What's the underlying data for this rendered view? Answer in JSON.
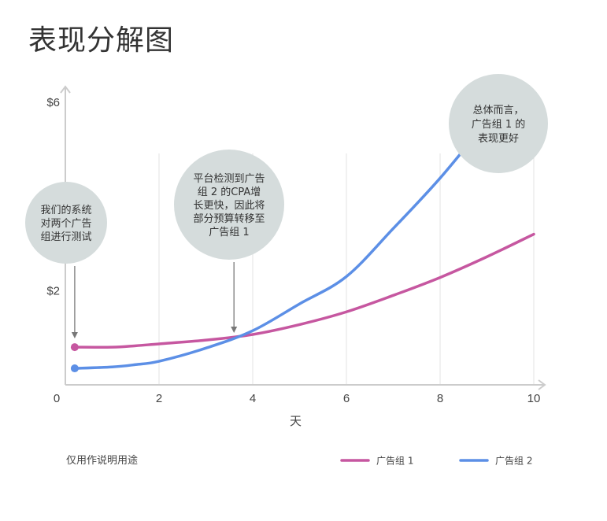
{
  "title": "表现分解图",
  "footnote": "仅用作说明用途",
  "colors": {
    "series1": "#c657a0",
    "series2": "#5c8fe6",
    "bubble": "#d5dcdc",
    "axis": "#cccccc"
  },
  "chart_data": {
    "type": "line",
    "xlabel": "天",
    "ylabel": "",
    "xlim": [
      0,
      10
    ],
    "ylim": [
      0,
      7
    ],
    "x_ticks": [
      "0",
      "2",
      "4",
      "6",
      "8",
      "10"
    ],
    "y_ticks": [
      "$2",
      "$6"
    ],
    "y_tick_values": [
      2,
      6
    ],
    "vertical_gridlines": [
      2,
      4,
      6,
      8,
      10
    ],
    "legend_position": "bottom-right",
    "series": [
      {
        "name": "广告组 1",
        "color": "#c657a0",
        "x": [
          0.2,
          1,
          1.5,
          2,
          3,
          4,
          5,
          6,
          7,
          8,
          9,
          10
        ],
        "y": [
          0.8,
          0.8,
          0.83,
          0.87,
          0.95,
          1.07,
          1.28,
          1.55,
          1.9,
          2.28,
          2.72,
          3.2
        ],
        "start_marker": true
      },
      {
        "name": "广告组 2",
        "color": "#5c8fe6",
        "x": [
          0.2,
          1,
          1.5,
          2,
          3,
          4,
          5,
          6,
          7,
          8,
          9,
          9.4
        ],
        "y": [
          0.35,
          0.38,
          0.43,
          0.5,
          0.78,
          1.15,
          1.72,
          2.3,
          3.32,
          4.39,
          5.6,
          6.1
        ],
        "start_marker": true
      }
    ],
    "annotations": [
      {
        "id": "a1",
        "lines": [
          "我们的系统",
          "对两个广告",
          "组进行测试"
        ],
        "arrow_x": 0.2
      },
      {
        "id": "a2",
        "lines": [
          "平台检测到广告",
          "组 2 的CPA增",
          "长更快，因此将",
          "部分预算转移至",
          "广告组 1"
        ],
        "arrow_x": 3.6
      },
      {
        "id": "a3",
        "lines": [
          "总体而言，",
          "广告组 1 的",
          "表现更好"
        ]
      }
    ]
  }
}
